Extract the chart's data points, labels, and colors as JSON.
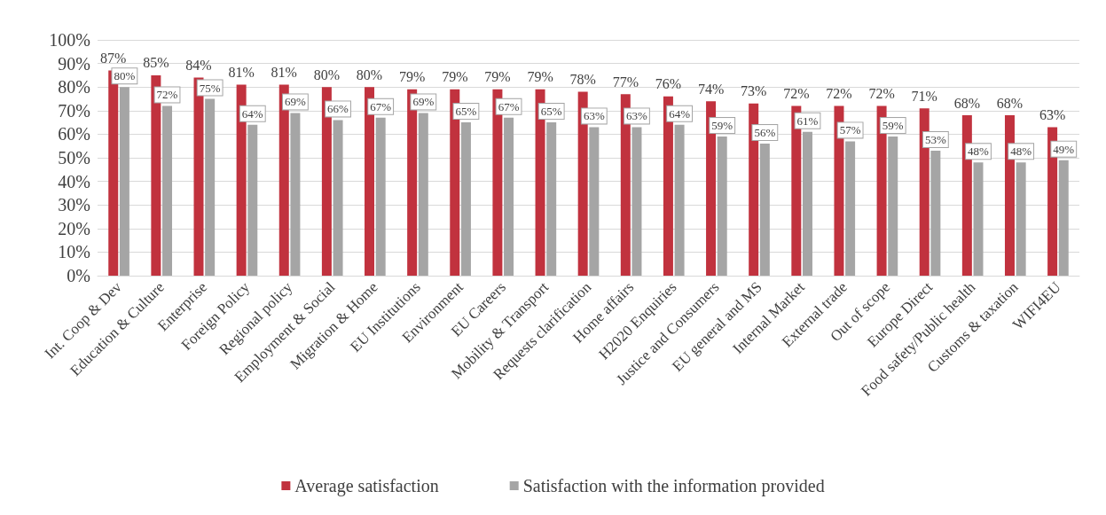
{
  "chart_data": {
    "type": "bar",
    "categories": [
      "Int. Coop & Dev",
      "Education & Culture",
      "Enterprise",
      "Foreign Policy",
      "Regional policy",
      "Employment & Social",
      "Migration & Home",
      "EU Institutions",
      "Environment",
      "EU Careers",
      "Mobility & Transport",
      "Requests clarification",
      "Home affairs",
      "H2020 Enquiries",
      "Justice and Consumers",
      "EU general and MS",
      "Internal Market",
      "External trade",
      "Out of scope",
      "Europe Direct",
      "Food safety/Public health",
      "Customs & taxation",
      "WIFI4EU"
    ],
    "series": [
      {
        "name": "Average satisfaction",
        "color": "#c1323e",
        "values": [
          87,
          85,
          84,
          81,
          81,
          80,
          80,
          79,
          79,
          79,
          79,
          78,
          77,
          76,
          74,
          73,
          72,
          72,
          72,
          71,
          68,
          68,
          63
        ],
        "value_labels": [
          "87%",
          "85%",
          "84%",
          "81%",
          "81%",
          "80%",
          "80%",
          "79%",
          "79%",
          "79%",
          "79%",
          "78%",
          "77%",
          "76%",
          "74%",
          "73%",
          "72%",
          "72%",
          "72%",
          "71%",
          "68%",
          "68%",
          "63%"
        ]
      },
      {
        "name": "Satisfaction with the information provided",
        "color": "#a5a5a5",
        "values": [
          80,
          72,
          75,
          64,
          69,
          66,
          67,
          69,
          65,
          67,
          65,
          63,
          63,
          64,
          59,
          56,
          61,
          57,
          59,
          53,
          48,
          48,
          49
        ],
        "value_labels": [
          "80%",
          "72%",
          "75%",
          "64%",
          "69%",
          "66%",
          "67%",
          "69%",
          "65%",
          "67%",
          "65%",
          "63%",
          "63%",
          "64%",
          "59%",
          "56%",
          "61%",
          "57%",
          "59%",
          "53%",
          "48%",
          "48%",
          "49%"
        ]
      }
    ],
    "ylim": [
      0,
      100
    ],
    "yticks": [
      {
        "value": 0,
        "label": "0%"
      },
      {
        "value": 10,
        "label": "10%"
      },
      {
        "value": 20,
        "label": "20%"
      },
      {
        "value": 30,
        "label": "30%"
      },
      {
        "value": 40,
        "label": "40%"
      },
      {
        "value": 50,
        "label": "50%"
      },
      {
        "value": 60,
        "label": "60%"
      },
      {
        "value": 70,
        "label": "70%"
      },
      {
        "value": 80,
        "label": "80%"
      },
      {
        "value": 90,
        "label": "90%"
      },
      {
        "value": 100,
        "label": "100%"
      }
    ],
    "grid": "y",
    "legend": "bottom"
  }
}
